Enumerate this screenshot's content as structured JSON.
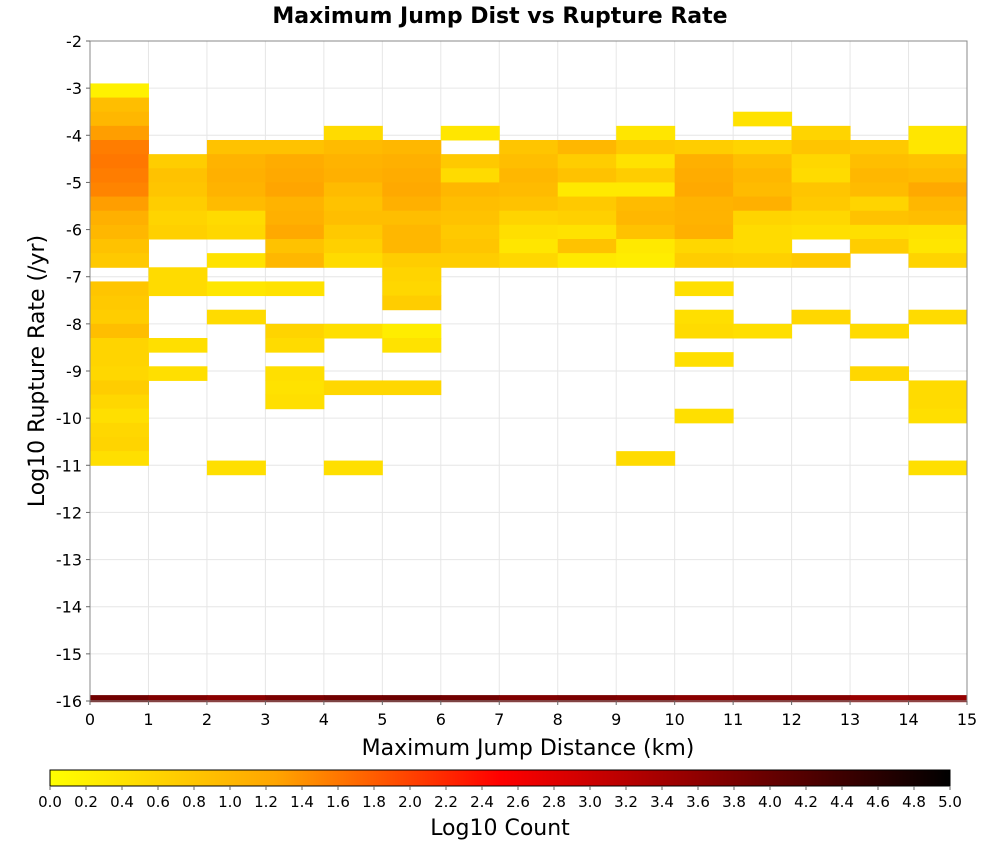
{
  "chart_data": {
    "type": "heatmap",
    "title": "Maximum Jump Dist vs Rupture Rate",
    "xlabel": "Maximum Jump Distance (km)",
    "ylabel": "Log10 Rupture Rate (/yr)",
    "xlim": [
      0,
      15
    ],
    "ylim": [
      -16,
      -2
    ],
    "x_bin_width": 1,
    "y_bin_height": 0.3,
    "x_ticks": [
      0,
      1,
      2,
      3,
      4,
      5,
      6,
      7,
      8,
      9,
      10,
      11,
      12,
      13,
      14,
      15
    ],
    "y_ticks": [
      -2,
      -3,
      -4,
      -5,
      -6,
      -7,
      -8,
      -9,
      -10,
      -11,
      -12,
      -13,
      -14,
      -15,
      -16
    ],
    "grid": true,
    "colorbar": {
      "label": "Log10 Count",
      "min": 0.0,
      "max": 5.0,
      "placement": "bottom",
      "ticks": [
        "0.0",
        "0.2",
        "0.4",
        "0.6",
        "0.8",
        "1.0",
        "1.2",
        "1.4",
        "1.6",
        "1.8",
        "2.0",
        "2.2",
        "2.4",
        "2.6",
        "2.8",
        "3.0",
        "3.2",
        "3.4",
        "3.6",
        "3.8",
        "4.0",
        "4.2",
        "4.4",
        "4.6",
        "4.8",
        "5.0"
      ],
      "colors": [
        "#ffff00",
        "#ffa500",
        "#ff0000",
        "#800000",
        "#000000"
      ]
    },
    "columns": [
      {
        "x": 0.5,
        "cells": [
          [
            -3.05,
            0.2
          ],
          [
            -3.35,
            0.9
          ],
          [
            -3.65,
            1.0
          ],
          [
            -3.95,
            1.3
          ],
          [
            -4.25,
            1.55
          ],
          [
            -4.55,
            1.6
          ],
          [
            -4.85,
            1.55
          ],
          [
            -5.15,
            1.5
          ],
          [
            -5.45,
            1.3
          ],
          [
            -5.75,
            1.1
          ],
          [
            -6.05,
            1.0
          ],
          [
            -6.35,
            0.85
          ],
          [
            -6.65,
            0.75
          ],
          [
            -7.25,
            0.8
          ],
          [
            -7.55,
            0.75
          ],
          [
            -7.85,
            0.7
          ],
          [
            -8.15,
            0.9
          ],
          [
            -8.45,
            0.6
          ],
          [
            -8.75,
            0.6
          ],
          [
            -9.05,
            0.55
          ],
          [
            -9.35,
            0.7
          ],
          [
            -9.65,
            0.55
          ],
          [
            -9.95,
            0.45
          ],
          [
            -10.25,
            0.55
          ],
          [
            -10.55,
            0.6
          ],
          [
            -10.85,
            0.45
          ]
        ]
      },
      {
        "x": 1.5,
        "cells": [
          [
            -4.55,
            0.7
          ],
          [
            -4.85,
            0.85
          ],
          [
            -5.15,
            0.8
          ],
          [
            -5.45,
            0.7
          ],
          [
            -5.75,
            0.6
          ],
          [
            -6.05,
            0.65
          ],
          [
            -6.95,
            0.5
          ],
          [
            -7.25,
            0.5
          ],
          [
            -8.45,
            0.45
          ],
          [
            -9.05,
            0.45
          ]
        ]
      },
      {
        "x": 2.5,
        "cells": [
          [
            -4.25,
            0.85
          ],
          [
            -4.55,
            1.05
          ],
          [
            -4.85,
            1.1
          ],
          [
            -5.15,
            1.05
          ],
          [
            -5.45,
            0.95
          ],
          [
            -5.75,
            0.5
          ],
          [
            -6.05,
            0.55
          ],
          [
            -6.65,
            0.4
          ],
          [
            -7.25,
            0.35
          ],
          [
            -7.85,
            0.5
          ],
          [
            -11.05,
            0.45
          ]
        ]
      },
      {
        "x": 3.5,
        "cells": [
          [
            -4.25,
            0.85
          ],
          [
            -4.55,
            1.15
          ],
          [
            -4.85,
            1.2
          ],
          [
            -5.15,
            1.25
          ],
          [
            -5.45,
            1.05
          ],
          [
            -5.75,
            1.1
          ],
          [
            -6.05,
            1.2
          ],
          [
            -6.35,
            0.85
          ],
          [
            -6.65,
            1.0
          ],
          [
            -7.25,
            0.4
          ],
          [
            -8.15,
            0.6
          ],
          [
            -8.45,
            0.5
          ],
          [
            -9.05,
            0.45
          ],
          [
            -9.35,
            0.4
          ],
          [
            -9.65,
            0.45
          ]
        ]
      },
      {
        "x": 4.5,
        "cells": [
          [
            -3.95,
            0.5
          ],
          [
            -4.25,
            0.95
          ],
          [
            -4.55,
            1.05
          ],
          [
            -4.85,
            1.1
          ],
          [
            -5.15,
            0.95
          ],
          [
            -5.45,
            0.85
          ],
          [
            -5.75,
            0.9
          ],
          [
            -6.05,
            0.75
          ],
          [
            -6.35,
            0.65
          ],
          [
            -6.65,
            0.5
          ],
          [
            -8.15,
            0.45
          ],
          [
            -9.35,
            0.55
          ],
          [
            -11.05,
            0.45
          ]
        ]
      },
      {
        "x": 5.5,
        "cells": [
          [
            -4.25,
            1.0
          ],
          [
            -4.55,
            1.1
          ],
          [
            -4.85,
            1.15
          ],
          [
            -5.15,
            1.2
          ],
          [
            -5.45,
            1.1
          ],
          [
            -5.75,
            0.9
          ],
          [
            -6.05,
            1.0
          ],
          [
            -6.35,
            1.0
          ],
          [
            -6.65,
            0.7
          ],
          [
            -6.95,
            0.6
          ],
          [
            -7.25,
            0.55
          ],
          [
            -7.55,
            0.7
          ],
          [
            -8.15,
            0.25
          ],
          [
            -8.45,
            0.4
          ],
          [
            -9.35,
            0.55
          ]
        ]
      },
      {
        "x": 6.5,
        "cells": [
          [
            -3.95,
            0.35
          ],
          [
            -4.55,
            0.75
          ],
          [
            -4.85,
            0.5
          ],
          [
            -5.15,
            1.0
          ],
          [
            -5.45,
            0.9
          ],
          [
            -5.75,
            0.85
          ],
          [
            -6.05,
            0.75
          ],
          [
            -6.35,
            0.8
          ],
          [
            -6.65,
            0.7
          ]
        ]
      },
      {
        "x": 7.5,
        "cells": [
          [
            -4.25,
            0.8
          ],
          [
            -4.55,
            0.9
          ],
          [
            -4.85,
            1.0
          ],
          [
            -5.15,
            0.95
          ],
          [
            -5.45,
            0.85
          ],
          [
            -5.75,
            0.6
          ],
          [
            -6.05,
            0.45
          ],
          [
            -6.35,
            0.35
          ],
          [
            -6.65,
            0.55
          ]
        ]
      },
      {
        "x": 8.5,
        "cells": [
          [
            -4.25,
            1.0
          ],
          [
            -4.55,
            0.7
          ],
          [
            -4.85,
            0.85
          ],
          [
            -5.15,
            0.3
          ],
          [
            -5.45,
            0.75
          ],
          [
            -5.75,
            0.65
          ],
          [
            -6.05,
            0.4
          ],
          [
            -6.35,
            0.85
          ],
          [
            -6.65,
            0.3
          ]
        ]
      },
      {
        "x": 9.5,
        "cells": [
          [
            -3.95,
            0.35
          ],
          [
            -4.25,
            0.75
          ],
          [
            -4.55,
            0.4
          ],
          [
            -4.85,
            0.7
          ],
          [
            -5.15,
            0.3
          ],
          [
            -5.45,
            0.95
          ],
          [
            -5.75,
            1.0
          ],
          [
            -6.05,
            0.85
          ],
          [
            -6.35,
            0.3
          ],
          [
            -6.65,
            0.25
          ],
          [
            -10.85,
            0.5
          ]
        ]
      },
      {
        "x": 10.5,
        "cells": [
          [
            -4.25,
            0.7
          ],
          [
            -4.55,
            1.1
          ],
          [
            -4.85,
            1.15
          ],
          [
            -5.15,
            1.2
          ],
          [
            -5.45,
            1.05
          ],
          [
            -5.75,
            1.05
          ],
          [
            -6.05,
            1.1
          ],
          [
            -6.35,
            0.55
          ],
          [
            -6.65,
            0.7
          ],
          [
            -7.25,
            0.45
          ],
          [
            -7.85,
            0.45
          ],
          [
            -8.15,
            0.5
          ],
          [
            -8.75,
            0.45
          ],
          [
            -9.95,
            0.45
          ]
        ]
      },
      {
        "x": 11.5,
        "cells": [
          [
            -3.65,
            0.4
          ],
          [
            -4.25,
            0.6
          ],
          [
            -4.55,
            0.9
          ],
          [
            -4.85,
            1.0
          ],
          [
            -5.15,
            0.95
          ],
          [
            -5.45,
            1.1
          ],
          [
            -5.75,
            0.6
          ],
          [
            -6.05,
            0.5
          ],
          [
            -6.35,
            0.5
          ],
          [
            -6.65,
            0.65
          ],
          [
            -8.15,
            0.45
          ]
        ]
      },
      {
        "x": 12.5,
        "cells": [
          [
            -3.95,
            0.6
          ],
          [
            -4.25,
            0.8
          ],
          [
            -4.55,
            0.55
          ],
          [
            -4.85,
            0.5
          ],
          [
            -5.15,
            0.8
          ],
          [
            -5.45,
            0.75
          ],
          [
            -5.75,
            0.55
          ],
          [
            -6.05,
            0.45
          ],
          [
            -6.65,
            0.75
          ],
          [
            -7.85,
            0.55
          ]
        ]
      },
      {
        "x": 13.5,
        "cells": [
          [
            -4.25,
            0.75
          ],
          [
            -4.55,
            0.9
          ],
          [
            -4.85,
            1.0
          ],
          [
            -5.15,
            0.95
          ],
          [
            -5.45,
            0.6
          ],
          [
            -5.75,
            0.85
          ],
          [
            -6.05,
            0.45
          ],
          [
            -6.35,
            0.7
          ],
          [
            -8.15,
            0.5
          ],
          [
            -9.05,
            0.55
          ]
        ]
      },
      {
        "x": 14.5,
        "cells": [
          [
            -3.95,
            0.35
          ],
          [
            -4.25,
            0.35
          ],
          [
            -4.55,
            0.85
          ],
          [
            -4.85,
            0.95
          ],
          [
            -5.15,
            1.2
          ],
          [
            -5.45,
            1.0
          ],
          [
            -5.75,
            0.9
          ],
          [
            -6.05,
            0.4
          ],
          [
            -6.35,
            0.35
          ],
          [
            -6.65,
            0.6
          ],
          [
            -7.85,
            0.5
          ],
          [
            -9.35,
            0.5
          ],
          [
            -9.65,
            0.5
          ],
          [
            -9.95,
            0.45
          ],
          [
            -11.05,
            0.45
          ]
        ]
      }
    ],
    "bottom_row": {
      "y": -15.95,
      "height": 0.15,
      "values": [
        3.9,
        3.75,
        3.65,
        3.8,
        3.9,
        3.95,
        3.9,
        3.75,
        3.8,
        3.75,
        3.65,
        3.7,
        3.7,
        3.5,
        3.55
      ]
    }
  }
}
